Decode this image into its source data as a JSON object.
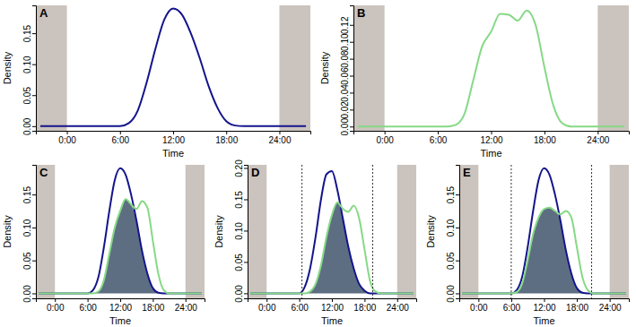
{
  "chart_data": [
    {
      "type": "line",
      "label": "A",
      "xlabel": "Time",
      "ylabel": "Density",
      "xlim": [
        -3.5,
        27.5
      ],
      "ylim": [
        -0.0075,
        0.195
      ],
      "xticks": [
        {
          "value": 0,
          "label": "0:00"
        },
        {
          "value": 6,
          "label": "6:00"
        },
        {
          "value": 12,
          "label": "12:00"
        },
        {
          "value": 18,
          "label": "18:00"
        },
        {
          "value": 24,
          "label": "24:00"
        }
      ],
      "yticks": [
        {
          "value": 0,
          "label": "0.00"
        },
        0.05,
        {
          "value": 0.1,
          "label": "0.10"
        },
        0.15
      ],
      "night": [
        [
          -3.5,
          0
        ],
        [
          24,
          27.5
        ]
      ],
      "x": [
        -3,
        -2,
        -1,
        0,
        1,
        2,
        3,
        4,
        5,
        6,
        7,
        8,
        9,
        10,
        11,
        12,
        13,
        14,
        15,
        16,
        17,
        18,
        19,
        20,
        21,
        22,
        23,
        24,
        25,
        26,
        27
      ],
      "series": [
        {
          "type": "line",
          "color": "#14148c",
          "values": [
            0,
            0,
            0,
            0,
            0,
            0,
            0,
            0,
            0,
            0,
            0.005,
            0.025,
            0.07,
            0.125,
            0.172,
            0.19,
            0.18,
            0.15,
            0.11,
            0.065,
            0.03,
            0.008,
            0.001,
            0,
            0,
            0,
            0,
            0,
            0,
            0,
            0
          ]
        }
      ]
    },
    {
      "type": "line",
      "label": "B",
      "xlabel": "Time",
      "ylabel": "Density",
      "xlim": [
        -3.5,
        27.5
      ],
      "ylim": [
        -0.005,
        0.143
      ],
      "xticks": [
        {
          "value": 0,
          "label": "0:00"
        },
        {
          "value": 6,
          "label": "6:00"
        },
        {
          "value": 12,
          "label": "12:00"
        },
        {
          "value": 18,
          "label": "18:00"
        },
        {
          "value": 24,
          "label": "24:00"
        }
      ],
      "yticks": [
        {
          "value": 0,
          "label": "0.00"
        },
        0.02,
        0.04,
        0.06,
        0.08,
        {
          "value": 0.1,
          "label": "0.10"
        },
        0.12
      ],
      "night": [
        [
          -3.5,
          0
        ],
        [
          24,
          27.5
        ]
      ],
      "x": [
        -3,
        -2,
        -1,
        0,
        1,
        2,
        3,
        4,
        5,
        6,
        7,
        8,
        9,
        10,
        11,
        12,
        13,
        14,
        15,
        16,
        17,
        18,
        19,
        20,
        21,
        22,
        23,
        24,
        25,
        26,
        27
      ],
      "series": [
        {
          "type": "line",
          "color": "#86d986",
          "values": [
            0,
            0,
            0,
            0,
            0,
            0,
            0,
            0,
            0,
            0,
            0,
            0.002,
            0.015,
            0.055,
            0.095,
            0.112,
            0.133,
            0.132,
            0.125,
            0.137,
            0.12,
            0.07,
            0.025,
            0.004,
            0,
            0,
            0,
            0,
            0,
            0,
            0
          ]
        }
      ]
    },
    {
      "type": "line",
      "label": "C",
      "xlabel": "Time",
      "ylabel": "Density",
      "xlim": [
        -3.5,
        27.5
      ],
      "ylim": [
        -0.0075,
        0.195
      ],
      "xticks": [
        {
          "value": 0,
          "label": "0:00"
        },
        {
          "value": 6,
          "label": "6:00"
        },
        {
          "value": 12,
          "label": "12:00"
        },
        {
          "value": 18,
          "label": "18:00"
        },
        {
          "value": 24,
          "label": "24:00"
        }
      ],
      "yticks": [
        {
          "value": 0,
          "label": "0.00"
        },
        0.05,
        {
          "value": 0.1,
          "label": "0.10"
        },
        0.15
      ],
      "night": [
        [
          -3.5,
          0
        ],
        [
          24,
          27.5
        ]
      ],
      "x": [
        -3,
        -2,
        -1,
        0,
        1,
        2,
        3,
        4,
        5,
        6,
        7,
        8,
        9,
        10,
        11,
        12,
        13,
        14,
        15,
        16,
        17,
        18,
        19,
        20,
        21,
        22,
        23,
        24,
        25,
        26,
        27
      ],
      "series": [
        {
          "type": "area",
          "color": "#5d6e82",
          "values": [
            0,
            0,
            0,
            0,
            0,
            0,
            0,
            0,
            0,
            0,
            0,
            0.003,
            0.02,
            0.06,
            0.1,
            0.125,
            0.143,
            0.135,
            0.11,
            0.065,
            0.03,
            0.008,
            0.001,
            0,
            0,
            0,
            0,
            0,
            0,
            0,
            0
          ]
        },
        {
          "type": "line",
          "color": "#14148c",
          "values": [
            0,
            0,
            0,
            0,
            0,
            0,
            0,
            0,
            0,
            0,
            0.005,
            0.025,
            0.07,
            0.125,
            0.172,
            0.19,
            0.18,
            0.15,
            0.11,
            0.065,
            0.03,
            0.008,
            0.001,
            0,
            0,
            0,
            0,
            0,
            0,
            0,
            0
          ]
        },
        {
          "type": "line",
          "color": "#86d986",
          "values": [
            0,
            0,
            0,
            0,
            0,
            0,
            0,
            0,
            0,
            0,
            0,
            0.003,
            0.02,
            0.06,
            0.1,
            0.125,
            0.143,
            0.135,
            0.128,
            0.14,
            0.13,
            0.08,
            0.03,
            0.005,
            0,
            0,
            0,
            0,
            0,
            0,
            0
          ]
        }
      ]
    },
    {
      "type": "line",
      "label": "D",
      "xlabel": "Time",
      "ylabel": "Density",
      "xlim": [
        -3.5,
        27.5
      ],
      "ylim": [
        -0.008,
        0.205
      ],
      "xticks": [
        {
          "value": 0,
          "label": "0:00"
        },
        {
          "value": 6,
          "label": "6:00"
        },
        {
          "value": 12,
          "label": "12:00"
        },
        {
          "value": 18,
          "label": "18:00"
        },
        {
          "value": 24,
          "label": "24:00"
        }
      ],
      "yticks": [
        {
          "value": 0,
          "label": "0.00"
        },
        0.05,
        {
          "value": 0.1,
          "label": "0.10"
        },
        0.15,
        {
          "value": 0.2,
          "label": "0.20"
        }
      ],
      "night": [
        [
          -3.5,
          0
        ],
        [
          24,
          27.5
        ]
      ],
      "vlines": [
        6.5,
        19.5
      ],
      "x": [
        -3,
        -2,
        -1,
        0,
        1,
        2,
        3,
        4,
        5,
        6,
        7,
        8,
        9,
        10,
        11,
        12,
        13,
        14,
        15,
        16,
        17,
        18,
        19,
        20,
        21,
        22,
        23,
        24,
        25,
        26,
        27
      ],
      "series": [
        {
          "type": "area",
          "color": "#5d6e82",
          "values": [
            0,
            0,
            0,
            0,
            0,
            0,
            0,
            0,
            0,
            0,
            0,
            0.003,
            0.015,
            0.045,
            0.09,
            0.125,
            0.145,
            0.12,
            0.075,
            0.04,
            0.015,
            0.004,
            0,
            0,
            0,
            0,
            0,
            0,
            0,
            0,
            0
          ]
        },
        {
          "type": "line",
          "color": "#14148c",
          "values": [
            0,
            0,
            0,
            0,
            0,
            0,
            0,
            0,
            0,
            0,
            0.01,
            0.04,
            0.09,
            0.15,
            0.19,
            0.195,
            0.165,
            0.12,
            0.075,
            0.04,
            0.015,
            0.004,
            0,
            0,
            0,
            0,
            0,
            0,
            0,
            0,
            0
          ]
        },
        {
          "type": "line",
          "color": "#86d986",
          "values": [
            0,
            0,
            0,
            0,
            0,
            0,
            0,
            0,
            0,
            0,
            0,
            0.003,
            0.015,
            0.045,
            0.09,
            0.125,
            0.145,
            0.135,
            0.13,
            0.14,
            0.12,
            0.07,
            0.02,
            0.003,
            0,
            0,
            0,
            0,
            0,
            0,
            0
          ]
        }
      ]
    },
    {
      "type": "line",
      "label": "E",
      "xlabel": "Time",
      "ylabel": "Density",
      "xlim": [
        -3.5,
        27.5
      ],
      "ylim": [
        -0.0075,
        0.195
      ],
      "xticks": [
        {
          "value": 0,
          "label": "0:00"
        },
        {
          "value": 6,
          "label": "6:00"
        },
        {
          "value": 12,
          "label": "12:00"
        },
        {
          "value": 18,
          "label": "18:00"
        },
        {
          "value": 24,
          "label": "24:00"
        }
      ],
      "yticks": [
        {
          "value": 0,
          "label": "0.00"
        },
        0.05,
        {
          "value": 0.1,
          "label": "0.10"
        },
        0.15
      ],
      "night": [
        [
          -3.5,
          0
        ],
        [
          24,
          27.5
        ]
      ],
      "vlines": [
        6,
        20.7
      ],
      "x": [
        -3,
        -2,
        -1,
        0,
        1,
        2,
        3,
        4,
        5,
        6,
        7,
        8,
        9,
        10,
        11,
        12,
        13,
        14,
        15,
        16,
        17,
        18,
        19,
        20,
        21,
        22,
        23,
        24,
        25,
        26,
        27
      ],
      "series": [
        {
          "type": "area",
          "color": "#5d6e82",
          "values": [
            0,
            0,
            0,
            0,
            0,
            0,
            0,
            0,
            0,
            0,
            0.002,
            0.015,
            0.05,
            0.09,
            0.115,
            0.128,
            0.13,
            0.125,
            0.11,
            0.065,
            0.03,
            0.008,
            0.001,
            0,
            0,
            0,
            0,
            0,
            0,
            0,
            0
          ]
        },
        {
          "type": "line",
          "color": "#14148c",
          "values": [
            0,
            0,
            0,
            0,
            0,
            0,
            0,
            0,
            0,
            0,
            0.005,
            0.025,
            0.07,
            0.125,
            0.172,
            0.19,
            0.18,
            0.15,
            0.11,
            0.065,
            0.03,
            0.008,
            0.001,
            0,
            0,
            0,
            0,
            0,
            0,
            0,
            0
          ]
        },
        {
          "type": "line",
          "color": "#86d986",
          "values": [
            0,
            0,
            0,
            0,
            0,
            0,
            0,
            0,
            0,
            0,
            0.002,
            0.015,
            0.05,
            0.09,
            0.115,
            0.128,
            0.13,
            0.125,
            0.12,
            0.125,
            0.115,
            0.07,
            0.025,
            0.005,
            0,
            0,
            0,
            0,
            0,
            0,
            0
          ]
        }
      ]
    }
  ]
}
